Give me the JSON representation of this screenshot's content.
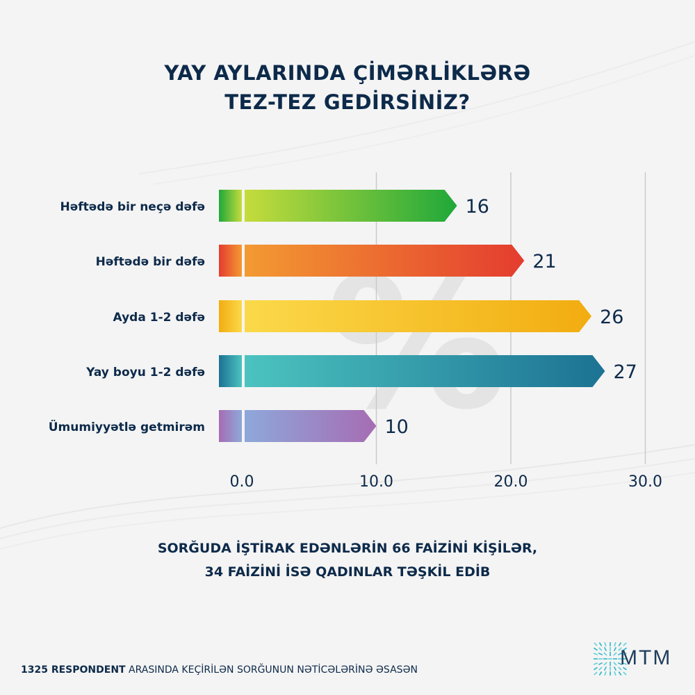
{
  "title": {
    "line1": "YAY AYLARINDA ÇİMƏRLİKLƏRƏ",
    "line2": "TEZ-TEZ GEDİRSİNİZ?"
  },
  "subtitle": {
    "line1": "SORĞUDA İŞTİRAK EDƏNLƏRİN 66 FAİZİNİ KİŞİLƏR,",
    "line2": "34 FAİZİNİ İSƏ QADINLAR TƏŞKİL EDİB"
  },
  "footer": {
    "bold": "1325 RESPONDENT",
    "rest": " ARASINDA KEÇİRİLƏN SORĞUNUN NƏTİCƏLƏRİNƏ ƏSASƏN"
  },
  "logo": {
    "text": "MTM",
    "icon": "mtm-logo-icon"
  },
  "watermark": "%",
  "chart_data": {
    "type": "bar",
    "orientation": "horizontal",
    "categories": [
      "Həftədə bir neçə dəfə",
      "Həftədə bir dəfə",
      "Ayda 1-2 dəfə",
      "Yay boyu 1-2 dəfə",
      "Ümumiyyətlə getmirəm"
    ],
    "values": [
      16,
      21,
      26,
      27,
      10
    ],
    "value_labels": [
      "16",
      "21",
      "26",
      "27",
      "10"
    ],
    "xlim": [
      0,
      30
    ],
    "ticks": [
      "0.0",
      "10.0",
      "20.0",
      "30.0"
    ],
    "tick_values": [
      0,
      10,
      20,
      30
    ],
    "grid": true,
    "colors": [
      [
        "#c5dc3c",
        "#1fa83a"
      ],
      [
        "#f39a32",
        "#e43c2f"
      ],
      [
        "#fbd94a",
        "#f2ac10"
      ],
      [
        "#4cc3c0",
        "#1c7293"
      ],
      [
        "#8ea8da",
        "#a66cb3"
      ]
    ]
  }
}
